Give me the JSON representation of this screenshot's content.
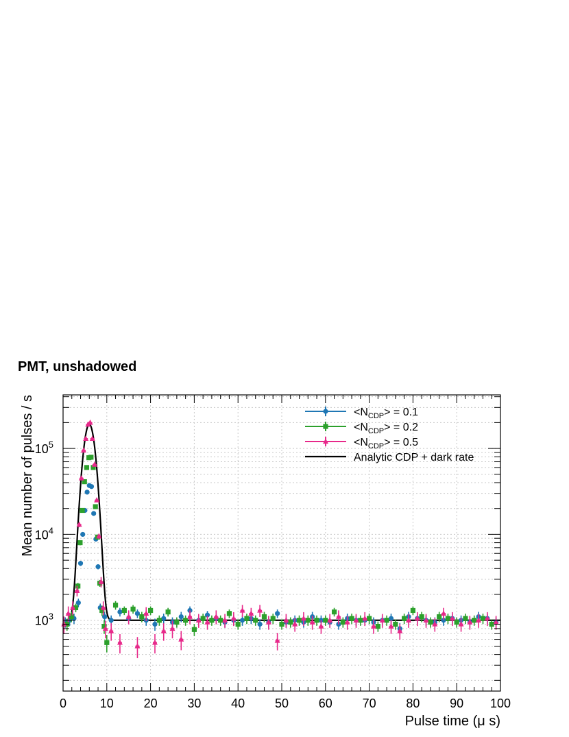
{
  "chart_data": {
    "type": "scatter",
    "title": "PMT, unshadowed",
    "xlabel": "Pulse time (μ s)",
    "ylabel": "Mean number of pulses / s",
    "xlim": [
      0,
      100
    ],
    "ylim": [
      150,
      420000
    ],
    "yscale": "log",
    "grid": true,
    "legend_position": "top-right",
    "x_ticks": [
      "0",
      "10",
      "20",
      "30",
      "40",
      "50",
      "60",
      "70",
      "80",
      "90",
      "100"
    ],
    "y_ticks": [
      {
        "base": "10",
        "exp": "3",
        "value": 1000
      },
      {
        "base": "10",
        "exp": "4",
        "value": 10000
      },
      {
        "base": "10",
        "exp": "5",
        "value": 100000
      }
    ],
    "series": [
      {
        "name": "<N",
        "sub": "CDP",
        "suffix": "> = 0.1",
        "color": "#1f77b4",
        "marker": "circle",
        "x": [
          0.5,
          1.5,
          2.5,
          3.5,
          4.0,
          4.5,
          5.0,
          5.5,
          6.0,
          6.5,
          7.0,
          7.5,
          8.0,
          8.5,
          9.5,
          11,
          13,
          15,
          17,
          19,
          21,
          23,
          25,
          27,
          29,
          31,
          33,
          35,
          37,
          39,
          41,
          43,
          45,
          47,
          49,
          51,
          53,
          55,
          57,
          59,
          61,
          63,
          65,
          67,
          69,
          71,
          73,
          75,
          77,
          79,
          81,
          83,
          85,
          87,
          89,
          91,
          93,
          95,
          97,
          99
        ],
        "y": [
          950,
          1000,
          1050,
          1600,
          4600,
          10000,
          19000,
          31000,
          37000,
          36000,
          17500,
          8800,
          4200,
          1400,
          1100,
          1000,
          1250,
          1050,
          1200,
          1000,
          900,
          1050,
          950,
          1100,
          1300,
          1000,
          1150,
          1050,
          950,
          1000,
          1000,
          1050,
          900,
          950,
          1200,
          950,
          1000,
          950,
          1100,
          1000,
          950,
          900,
          1050,
          1000,
          1000,
          950,
          1000,
          1050,
          800,
          1100,
          1050,
          1000,
          950,
          1000,
          1050,
          1000,
          950,
          1100,
          1050,
          950
        ],
        "err": [
          0.06,
          0.06,
          0.06,
          0.05,
          0.03,
          0.025,
          0.02,
          0.015,
          0.015,
          0.015,
          0.02,
          0.025,
          0.03,
          0.05,
          0.06,
          0.06,
          0.05,
          0.06,
          0.05,
          0.06,
          0.07,
          0.06,
          0.06,
          0.06,
          0.05,
          0.06,
          0.05,
          0.06,
          0.06,
          0.06,
          0.06,
          0.06,
          0.06,
          0.06,
          0.05,
          0.06,
          0.06,
          0.06,
          0.06,
          0.06,
          0.06,
          0.06,
          0.06,
          0.06,
          0.06,
          0.06,
          0.06,
          0.06,
          0.07,
          0.06,
          0.06,
          0.06,
          0.06,
          0.06,
          0.06,
          0.06,
          0.06,
          0.06,
          0.06,
          0.06
        ]
      },
      {
        "name": "<N",
        "sub": "CDP",
        "suffix": "> = 0.2",
        "color": "#2ca02c",
        "marker": "square",
        "x": [
          0.9,
          1.9,
          2.9,
          3.4,
          3.9,
          4.4,
          4.9,
          5.4,
          5.9,
          6.4,
          6.9,
          7.4,
          7.9,
          8.4,
          8.9,
          9.4,
          10,
          12,
          14,
          16,
          18,
          20,
          22,
          24,
          26,
          28,
          30,
          32,
          34,
          36,
          38,
          40,
          42,
          44,
          46,
          48,
          50,
          52,
          54,
          56,
          58,
          60,
          62,
          64,
          66,
          68,
          70,
          72,
          74,
          76,
          78,
          80,
          82,
          84,
          86,
          88,
          90,
          92,
          94,
          96,
          98
        ],
        "y": [
          900,
          1100,
          1400,
          2500,
          8000,
          19000,
          41000,
          60000,
          78000,
          79000,
          60000,
          21000,
          9300,
          2700,
          1300,
          850,
          550,
          1500,
          1300,
          1350,
          1100,
          1300,
          1000,
          1250,
          950,
          1000,
          780,
          1050,
          1000,
          1000,
          1200,
          900,
          1050,
          1000,
          1100,
          1050,
          900,
          950,
          1000,
          1000,
          1000,
          1000,
          1250,
          950,
          1050,
          1000,
          1050,
          850,
          1000,
          900,
          1050,
          1300,
          1100,
          950,
          1100,
          1050,
          950,
          1050,
          1000,
          1050,
          900
        ],
        "err": [
          0.07,
          0.06,
          0.05,
          0.04,
          0.03,
          0.02,
          0.015,
          0.012,
          0.01,
          0.01,
          0.012,
          0.02,
          0.025,
          0.04,
          0.06,
          0.08,
          0.1,
          0.05,
          0.05,
          0.05,
          0.06,
          0.05,
          0.06,
          0.05,
          0.06,
          0.06,
          0.07,
          0.06,
          0.06,
          0.06,
          0.05,
          0.06,
          0.06,
          0.06,
          0.06,
          0.06,
          0.06,
          0.06,
          0.06,
          0.06,
          0.06,
          0.06,
          0.05,
          0.06,
          0.06,
          0.06,
          0.06,
          0.06,
          0.06,
          0.06,
          0.06,
          0.05,
          0.06,
          0.06,
          0.06,
          0.06,
          0.06,
          0.06,
          0.06,
          0.06,
          0.06
        ]
      },
      {
        "name": "<N",
        "sub": "CDP",
        "suffix": "> = 0.5",
        "color": "#e7298a",
        "marker": "triangle",
        "x": [
          0.2,
          1.2,
          2.2,
          3.2,
          3.7,
          4.2,
          4.7,
          5.2,
          5.7,
          6.2,
          6.7,
          7.2,
          7.7,
          8.2,
          8.7,
          9.2,
          9.7,
          11,
          13,
          15,
          17,
          19,
          21,
          23,
          25,
          27,
          29,
          31,
          33,
          35,
          37,
          39,
          41,
          43,
          45,
          47,
          49,
          51,
          53,
          55,
          57,
          59,
          61,
          63,
          65,
          67,
          69,
          71,
          73,
          75,
          77,
          79,
          81,
          83,
          85,
          87,
          89,
          91,
          93,
          95,
          97,
          99
        ],
        "y": [
          900,
          1200,
          1400,
          2200,
          13000,
          45000,
          95000,
          130000,
          190000,
          200000,
          130000,
          65000,
          25000,
          9500,
          2800,
          1400,
          800,
          750,
          550,
          1100,
          500,
          1200,
          550,
          750,
          800,
          600,
          1100,
          1000,
          950,
          1100,
          1000,
          1050,
          1300,
          1200,
          1300,
          950,
          580,
          1000,
          900,
          1050,
          950,
          850,
          1000,
          1100,
          950,
          1000,
          1050,
          850,
          1000,
          850,
          750,
          1000,
          1050,
          1000,
          900,
          1200,
          1050,
          900,
          950,
          1000,
          1050,
          950
        ],
        "err": [
          0.1,
          0.09,
          0.08,
          0.06,
          0.03,
          0.02,
          0.012,
          0.01,
          0.008,
          0.008,
          0.01,
          0.012,
          0.02,
          0.03,
          0.06,
          0.08,
          0.1,
          0.1,
          0.11,
          0.08,
          0.12,
          0.08,
          0.11,
          0.1,
          0.1,
          0.11,
          0.08,
          0.08,
          0.08,
          0.08,
          0.08,
          0.08,
          0.07,
          0.07,
          0.07,
          0.08,
          0.1,
          0.08,
          0.08,
          0.08,
          0.08,
          0.08,
          0.08,
          0.08,
          0.08,
          0.08,
          0.08,
          0.08,
          0.08,
          0.08,
          0.09,
          0.08,
          0.08,
          0.08,
          0.08,
          0.07,
          0.08,
          0.08,
          0.08,
          0.08,
          0.08,
          0.08
        ]
      }
    ],
    "model": {
      "name": "Analytic CDP + dark rate",
      "color": "#000000",
      "baseline": 1000,
      "peak": 190000,
      "center": 6.0,
      "sigma": 1.1
    }
  }
}
